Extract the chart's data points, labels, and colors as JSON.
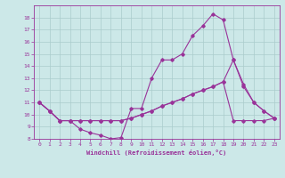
{
  "xlabel": "Windchill (Refroidissement éolien,°C)",
  "bg_color": "#cce8e8",
  "grid_color": "#aacccc",
  "line_color": "#993399",
  "xlim": [
    -0.5,
    23.5
  ],
  "ylim": [
    8,
    19
  ],
  "xticks": [
    0,
    1,
    2,
    3,
    4,
    5,
    6,
    7,
    8,
    9,
    10,
    11,
    12,
    13,
    14,
    15,
    16,
    17,
    18,
    19,
    20,
    21,
    22,
    23
  ],
  "yticks": [
    8,
    9,
    10,
    11,
    12,
    13,
    14,
    15,
    16,
    17,
    18
  ],
  "line1_x": [
    0,
    1,
    2,
    3,
    4,
    5,
    6,
    7,
    8,
    9,
    10,
    11,
    12,
    13,
    14,
    15,
    16,
    17,
    18,
    19,
    20,
    21,
    22,
    23
  ],
  "line1_y": [
    11.0,
    10.3,
    9.5,
    9.5,
    8.8,
    8.5,
    8.3,
    8.0,
    8.1,
    10.5,
    10.5,
    13.0,
    14.5,
    14.5,
    15.0,
    16.5,
    17.3,
    18.3,
    17.8,
    14.5,
    12.5,
    11.0,
    10.3,
    9.7
  ],
  "line2_x": [
    0,
    1,
    2,
    3,
    4,
    5,
    6,
    7,
    8,
    9,
    10,
    11,
    12,
    13,
    14,
    15,
    16,
    17,
    18,
    19,
    20,
    21,
    22,
    23
  ],
  "line2_y": [
    11.0,
    10.3,
    9.5,
    9.5,
    9.5,
    9.5,
    9.5,
    9.5,
    9.5,
    9.7,
    10.0,
    10.3,
    10.7,
    11.0,
    11.3,
    11.7,
    12.0,
    12.3,
    12.7,
    9.5,
    9.5,
    9.5,
    9.5,
    9.7
  ],
  "line3_x": [
    0,
    1,
    2,
    3,
    4,
    5,
    6,
    7,
    8,
    9,
    10,
    11,
    12,
    13,
    14,
    15,
    16,
    17,
    18,
    19,
    20,
    21,
    22,
    23
  ],
  "line3_y": [
    11.0,
    10.3,
    9.5,
    9.5,
    9.5,
    9.5,
    9.5,
    9.5,
    9.5,
    9.7,
    10.0,
    10.3,
    10.7,
    11.0,
    11.3,
    11.7,
    12.0,
    12.3,
    12.7,
    14.5,
    12.3,
    11.0,
    10.3,
    9.7
  ]
}
